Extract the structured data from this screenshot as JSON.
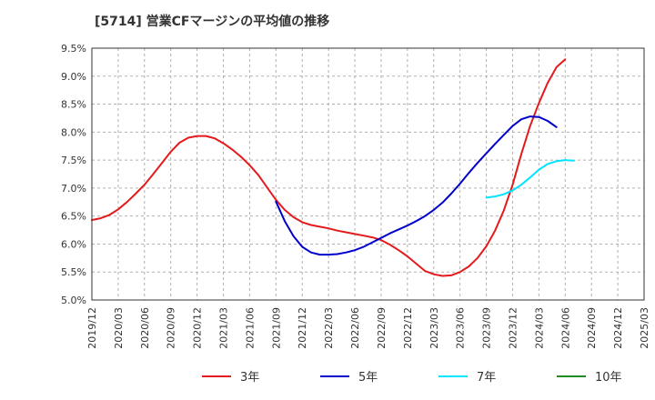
{
  "chart_data": {
    "type": "line",
    "title": "[5714]  営業CFマージンの平均値の推移",
    "y_ticks": [
      "9.5%",
      "9.0%",
      "8.5%",
      "8.0%",
      "7.5%",
      "7.0%",
      "6.5%",
      "6.0%",
      "5.5%",
      "5.0%"
    ],
    "ylim": [
      5.0,
      9.5
    ],
    "x_ticks": [
      "2019/12",
      "2020/03",
      "2020/06",
      "2020/09",
      "2020/12",
      "2021/03",
      "2021/06",
      "2021/09",
      "2021/12",
      "2022/03",
      "2022/06",
      "2022/09",
      "2022/12",
      "2023/03",
      "2023/06",
      "2023/09",
      "2023/12",
      "2024/03",
      "2024/06",
      "2024/09",
      "2024/12",
      "2025/03"
    ],
    "x_range": [
      "2019/12",
      "2025/03"
    ],
    "grid": "dashed",
    "legend_position": "bottom",
    "series": [
      {
        "name": "3年",
        "color": "#e41a1c",
        "points": [
          [
            "2019/12",
            6.43
          ],
          [
            "2020/01",
            6.46
          ],
          [
            "2020/02",
            6.52
          ],
          [
            "2020/03",
            6.62
          ],
          [
            "2020/04",
            6.75
          ],
          [
            "2020/05",
            6.9
          ],
          [
            "2020/06",
            7.06
          ],
          [
            "2020/07",
            7.25
          ],
          [
            "2020/08",
            7.45
          ],
          [
            "2020/09",
            7.65
          ],
          [
            "2020/10",
            7.81
          ],
          [
            "2020/11",
            7.9
          ],
          [
            "2020/12",
            7.93
          ],
          [
            "2021/01",
            7.93
          ],
          [
            "2021/02",
            7.89
          ],
          [
            "2021/03",
            7.8
          ],
          [
            "2021/04",
            7.69
          ],
          [
            "2021/05",
            7.56
          ],
          [
            "2021/06",
            7.41
          ],
          [
            "2021/07",
            7.23
          ],
          [
            "2021/08",
            7.01
          ],
          [
            "2021/09",
            6.79
          ],
          [
            "2021/10",
            6.61
          ],
          [
            "2021/11",
            6.48
          ],
          [
            "2021/12",
            6.39
          ],
          [
            "2022/01",
            6.34
          ],
          [
            "2022/02",
            6.31
          ],
          [
            "2022/03",
            6.28
          ],
          [
            "2022/04",
            6.24
          ],
          [
            "2022/05",
            6.21
          ],
          [
            "2022/06",
            6.18
          ],
          [
            "2022/07",
            6.15
          ],
          [
            "2022/08",
            6.12
          ],
          [
            "2022/09",
            6.07
          ],
          [
            "2022/10",
            5.99
          ],
          [
            "2022/11",
            5.89
          ],
          [
            "2022/12",
            5.78
          ],
          [
            "2023/01",
            5.65
          ],
          [
            "2023/02",
            5.52
          ],
          [
            "2023/03",
            5.46
          ],
          [
            "2023/04",
            5.43
          ],
          [
            "2023/05",
            5.44
          ],
          [
            "2023/06",
            5.5
          ],
          [
            "2023/07",
            5.6
          ],
          [
            "2023/08",
            5.75
          ],
          [
            "2023/09",
            5.96
          ],
          [
            "2023/10",
            6.24
          ],
          [
            "2023/11",
            6.6
          ],
          [
            "2023/12",
            7.06
          ],
          [
            "2024/01",
            7.61
          ],
          [
            "2024/02",
            8.11
          ],
          [
            "2024/03",
            8.52
          ],
          [
            "2024/04",
            8.88
          ],
          [
            "2024/05",
            9.16
          ],
          [
            "2024/06",
            9.3
          ]
        ]
      },
      {
        "name": "5年",
        "color": "#0000cc",
        "points": [
          [
            "2021/09",
            6.76
          ],
          [
            "2021/10",
            6.41
          ],
          [
            "2021/11",
            6.14
          ],
          [
            "2021/12",
            5.95
          ],
          [
            "2022/01",
            5.85
          ],
          [
            "2022/02",
            5.81
          ],
          [
            "2022/03",
            5.81
          ],
          [
            "2022/04",
            5.82
          ],
          [
            "2022/05",
            5.85
          ],
          [
            "2022/06",
            5.89
          ],
          [
            "2022/07",
            5.95
          ],
          [
            "2022/08",
            6.03
          ],
          [
            "2022/09",
            6.11
          ],
          [
            "2022/10",
            6.19
          ],
          [
            "2022/11",
            6.26
          ],
          [
            "2022/12",
            6.33
          ],
          [
            "2023/01",
            6.41
          ],
          [
            "2023/02",
            6.5
          ],
          [
            "2023/03",
            6.61
          ],
          [
            "2023/04",
            6.74
          ],
          [
            "2023/05",
            6.9
          ],
          [
            "2023/06",
            7.08
          ],
          [
            "2023/07",
            7.27
          ],
          [
            "2023/08",
            7.45
          ],
          [
            "2023/09",
            7.62
          ],
          [
            "2023/10",
            7.79
          ],
          [
            "2023/11",
            7.95
          ],
          [
            "2023/12",
            8.11
          ],
          [
            "2024/01",
            8.23
          ],
          [
            "2024/02",
            8.28
          ],
          [
            "2024/03",
            8.27
          ],
          [
            "2024/04",
            8.2
          ],
          [
            "2024/05",
            8.09
          ]
        ]
      },
      {
        "name": "7年",
        "color": "#00e5ff",
        "points": [
          [
            "2023/09",
            6.83
          ],
          [
            "2023/10",
            6.85
          ],
          [
            "2023/11",
            6.89
          ],
          [
            "2023/12",
            6.96
          ],
          [
            "2024/01",
            7.06
          ],
          [
            "2024/02",
            7.19
          ],
          [
            "2024/03",
            7.33
          ],
          [
            "2024/04",
            7.43
          ],
          [
            "2024/05",
            7.48
          ],
          [
            "2024/06",
            7.5
          ],
          [
            "2024/07",
            7.49
          ]
        ]
      },
      {
        "name": "10年",
        "color": "#228b22",
        "points": []
      }
    ]
  }
}
